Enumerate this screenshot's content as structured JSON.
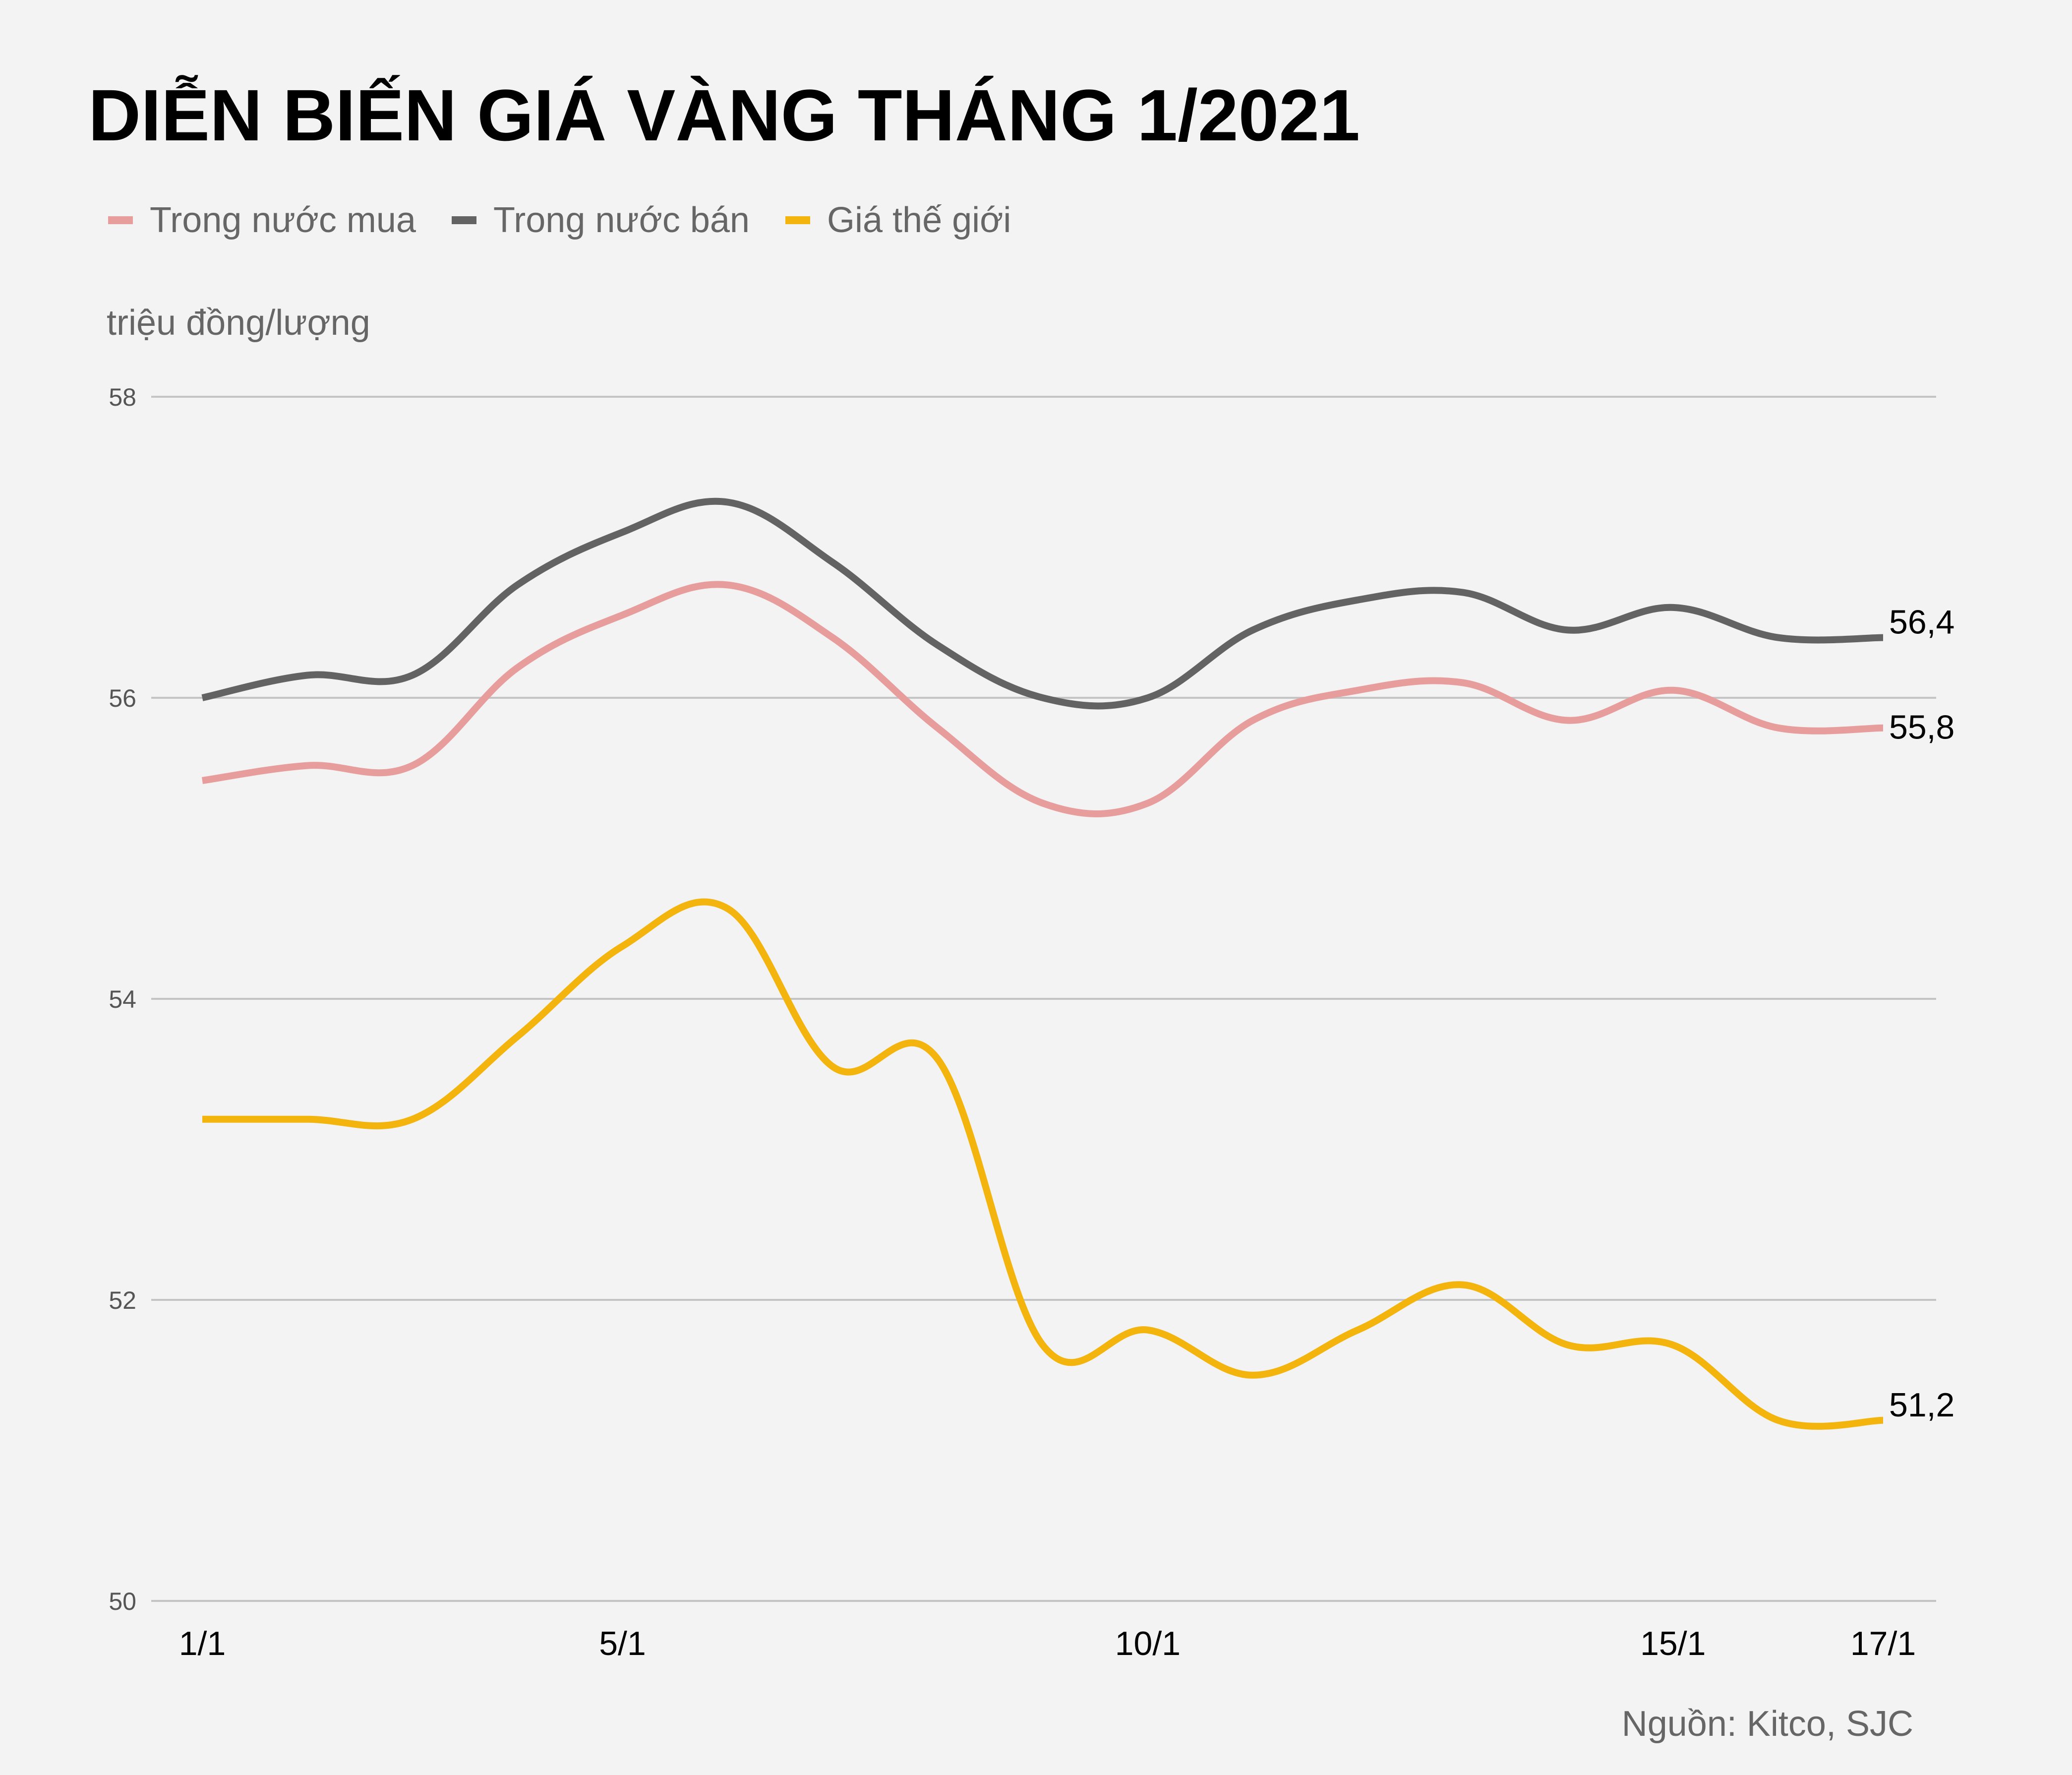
{
  "title": "DIỄN BIẾN GIÁ VÀNG THÁNG 1/2021",
  "unit_label": "triệu đồng/lượng",
  "source": "Nguồn: Kitco, SJC",
  "colors": {
    "domestic_buy": "#e89d9d",
    "domestic_sell": "#636363",
    "world": "#f2b40d",
    "grid": "#c4c4c4",
    "background": "#f3f3f3"
  },
  "chart_data": {
    "type": "line",
    "title": "DIỄN BIẾN GIÁ VÀNG THÁNG 1/2021",
    "ylabel": "triệu đồng/lượng",
    "xlabel": "",
    "ylim": [
      50,
      58
    ],
    "yticks": [
      "50",
      "52",
      "54",
      "56",
      "58"
    ],
    "grid": true,
    "legend_position": "top-left",
    "x": [
      1,
      2,
      3,
      4,
      5,
      6,
      7,
      8,
      9,
      10,
      11,
      12,
      13,
      14,
      15,
      16,
      17
    ],
    "xticks": [
      {
        "day": 1,
        "label": "1/1"
      },
      {
        "day": 5,
        "label": "5/1"
      },
      {
        "day": 10,
        "label": "10/1"
      },
      {
        "day": 15,
        "label": "15/1"
      },
      {
        "day": 17,
        "label": "17/1"
      }
    ],
    "series": [
      {
        "name": "Trong nước mua",
        "color": "#e89d9d",
        "values": [
          55.45,
          55.55,
          55.55,
          56.2,
          56.55,
          56.75,
          56.4,
          55.8,
          55.3,
          55.3,
          55.85,
          56.05,
          56.1,
          55.85,
          56.05,
          55.8,
          55.8
        ],
        "end_label": "55,8"
      },
      {
        "name": "Trong nước bán",
        "color": "#636363",
        "values": [
          56.0,
          56.15,
          56.15,
          56.75,
          57.1,
          57.3,
          56.9,
          56.35,
          56.0,
          56.0,
          56.45,
          56.65,
          56.7,
          56.45,
          56.6,
          56.4,
          56.4
        ],
        "end_label": "56,4"
      },
      {
        "name": "Giá thế giới",
        "color": "#f2b40d",
        "values": [
          53.2,
          53.2,
          53.2,
          53.75,
          54.35,
          54.6,
          53.55,
          53.6,
          51.7,
          51.8,
          51.5,
          51.8,
          52.1,
          51.7,
          51.7,
          51.2,
          51.2
        ],
        "end_label": "51,2"
      }
    ]
  }
}
